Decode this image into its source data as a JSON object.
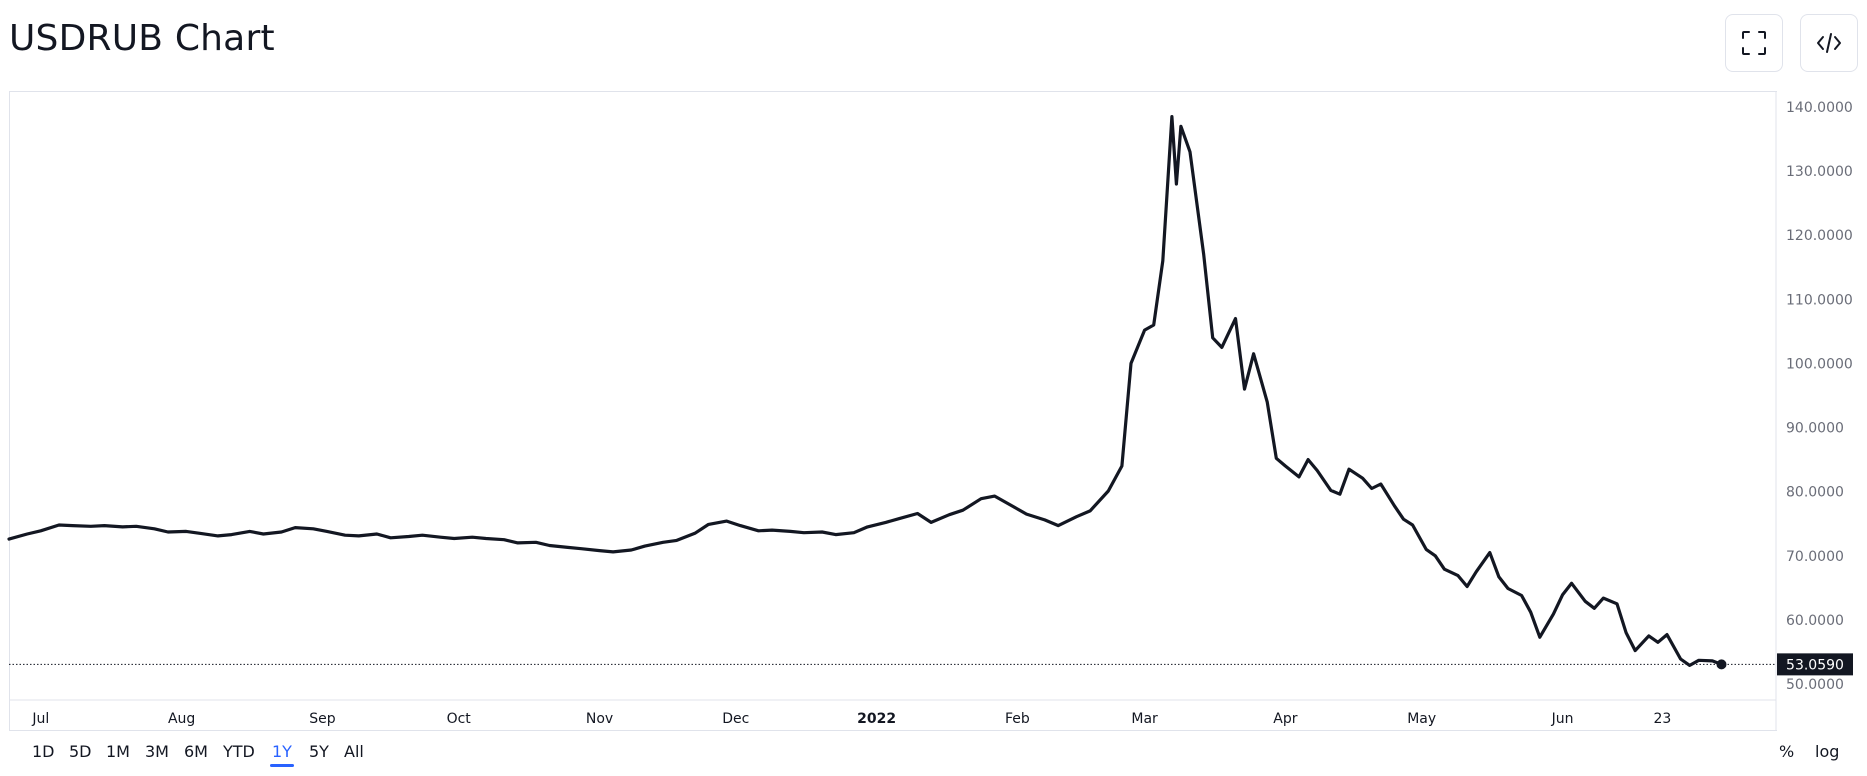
{
  "header": {
    "title": "USDRUB Chart",
    "buttons": [
      {
        "name": "fullscreen",
        "icon": "fullscreen-icon"
      },
      {
        "name": "embed",
        "icon": "code-icon"
      }
    ]
  },
  "chart_data": {
    "type": "line",
    "series": [
      {
        "color": "#131722",
        "last_value": 53.059,
        "last_value_label": "53.0590",
        "points": [
          [
            "2021-06-24",
            72.6
          ],
          [
            "2021-06-28",
            73.4
          ],
          [
            "2021-07-01",
            73.9
          ],
          [
            "2021-07-05",
            74.8
          ],
          [
            "2021-07-08",
            74.7
          ],
          [
            "2021-07-12",
            74.6
          ],
          [
            "2021-07-15",
            74.7
          ],
          [
            "2021-07-19",
            74.5
          ],
          [
            "2021-07-22",
            74.6
          ],
          [
            "2021-07-26",
            74.2
          ],
          [
            "2021-07-29",
            73.7
          ],
          [
            "2021-08-02",
            73.8
          ],
          [
            "2021-08-05",
            73.5
          ],
          [
            "2021-08-09",
            73.1
          ],
          [
            "2021-08-12",
            73.3
          ],
          [
            "2021-08-16",
            73.8
          ],
          [
            "2021-08-19",
            73.4
          ],
          [
            "2021-08-23",
            73.7
          ],
          [
            "2021-08-26",
            74.4
          ],
          [
            "2021-08-30",
            74.2
          ],
          [
            "2021-09-02",
            73.8
          ],
          [
            "2021-09-06",
            73.2
          ],
          [
            "2021-09-09",
            73.1
          ],
          [
            "2021-09-13",
            73.4
          ],
          [
            "2021-09-16",
            72.8
          ],
          [
            "2021-09-20",
            73.0
          ],
          [
            "2021-09-23",
            73.2
          ],
          [
            "2021-09-27",
            72.9
          ],
          [
            "2021-09-30",
            72.7
          ],
          [
            "2021-10-04",
            72.9
          ],
          [
            "2021-10-07",
            72.7
          ],
          [
            "2021-10-11",
            72.5
          ],
          [
            "2021-10-14",
            72.0
          ],
          [
            "2021-10-18",
            72.1
          ],
          [
            "2021-10-21",
            71.6
          ],
          [
            "2021-10-25",
            71.3
          ],
          [
            "2021-10-28",
            71.1
          ],
          [
            "2021-11-01",
            70.8
          ],
          [
            "2021-11-04",
            70.6
          ],
          [
            "2021-11-08",
            70.9
          ],
          [
            "2021-11-11",
            71.5
          ],
          [
            "2021-11-15",
            72.1
          ],
          [
            "2021-11-18",
            72.4
          ],
          [
            "2021-11-22",
            73.5
          ],
          [
            "2021-11-25",
            74.9
          ],
          [
            "2021-11-29",
            75.4
          ],
          [
            "2021-12-02",
            74.7
          ],
          [
            "2021-12-06",
            73.9
          ],
          [
            "2021-12-09",
            74.0
          ],
          [
            "2021-12-13",
            73.8
          ],
          [
            "2021-12-16",
            73.6
          ],
          [
            "2021-12-20",
            73.7
          ],
          [
            "2021-12-23",
            73.3
          ],
          [
            "2021-12-27",
            73.6
          ],
          [
            "2021-12-30",
            74.5
          ],
          [
            "2022-01-03",
            75.2
          ],
          [
            "2022-01-06",
            75.8
          ],
          [
            "2022-01-10",
            76.6
          ],
          [
            "2022-01-13",
            75.2
          ],
          [
            "2022-01-17",
            76.4
          ],
          [
            "2022-01-20",
            77.1
          ],
          [
            "2022-01-24",
            78.9
          ],
          [
            "2022-01-27",
            79.3
          ],
          [
            "2022-01-31",
            77.7
          ],
          [
            "2022-02-03",
            76.5
          ],
          [
            "2022-02-07",
            75.6
          ],
          [
            "2022-02-10",
            74.7
          ],
          [
            "2022-02-14",
            76.1
          ],
          [
            "2022-02-17",
            77.0
          ],
          [
            "2022-02-21",
            80.1
          ],
          [
            "2022-02-24",
            84.0
          ],
          [
            "2022-02-26",
            100.0
          ],
          [
            "2022-03-01",
            105.2
          ],
          [
            "2022-03-03",
            106.0
          ],
          [
            "2022-03-05",
            116.0
          ],
          [
            "2022-03-07",
            138.5
          ],
          [
            "2022-03-08",
            128.0
          ],
          [
            "2022-03-09",
            137.0
          ],
          [
            "2022-03-11",
            133.0
          ],
          [
            "2022-03-14",
            117.0
          ],
          [
            "2022-03-16",
            104.0
          ],
          [
            "2022-03-18",
            102.5
          ],
          [
            "2022-03-21",
            107.0
          ],
          [
            "2022-03-23",
            96.0
          ],
          [
            "2022-03-25",
            101.5
          ],
          [
            "2022-03-28",
            94.0
          ],
          [
            "2022-03-30",
            85.2
          ],
          [
            "2022-04-01",
            84.0
          ],
          [
            "2022-04-04",
            82.3
          ],
          [
            "2022-04-06",
            85.0
          ],
          [
            "2022-04-08",
            83.3
          ],
          [
            "2022-04-11",
            80.2
          ],
          [
            "2022-04-13",
            79.6
          ],
          [
            "2022-04-15",
            83.5
          ],
          [
            "2022-04-18",
            82.1
          ],
          [
            "2022-04-20",
            80.5
          ],
          [
            "2022-04-22",
            81.2
          ],
          [
            "2022-04-25",
            77.8
          ],
          [
            "2022-04-27",
            75.7
          ],
          [
            "2022-04-29",
            74.8
          ],
          [
            "2022-05-02",
            71.0
          ],
          [
            "2022-05-04",
            70.0
          ],
          [
            "2022-05-06",
            67.9
          ],
          [
            "2022-05-09",
            66.9
          ],
          [
            "2022-05-11",
            65.2
          ],
          [
            "2022-05-13",
            67.5
          ],
          [
            "2022-05-16",
            70.5
          ],
          [
            "2022-05-18",
            66.7
          ],
          [
            "2022-05-20",
            64.9
          ],
          [
            "2022-05-23",
            63.8
          ],
          [
            "2022-05-25",
            61.2
          ],
          [
            "2022-05-27",
            57.3
          ],
          [
            "2022-05-30",
            60.9
          ],
          [
            "2022-06-01",
            63.9
          ],
          [
            "2022-06-03",
            65.7
          ],
          [
            "2022-06-06",
            62.9
          ],
          [
            "2022-06-08",
            61.8
          ],
          [
            "2022-06-10",
            63.4
          ],
          [
            "2022-06-13",
            62.5
          ],
          [
            "2022-06-15",
            58.0
          ],
          [
            "2022-06-17",
            55.2
          ],
          [
            "2022-06-20",
            57.5
          ],
          [
            "2022-06-22",
            56.5
          ],
          [
            "2022-06-24",
            57.7
          ],
          [
            "2022-06-27",
            53.9
          ],
          [
            "2022-06-29",
            52.9
          ],
          [
            "2022-07-01",
            53.7
          ],
          [
            "2022-07-04",
            53.6
          ],
          [
            "2022-07-06",
            53.06
          ]
        ]
      }
    ],
    "x_ticks": [
      {
        "label": "Jul",
        "date": "2021-07-01"
      },
      {
        "label": "Aug",
        "date": "2021-08-01"
      },
      {
        "label": "Sep",
        "date": "2021-09-01"
      },
      {
        "label": "Oct",
        "date": "2021-10-01"
      },
      {
        "label": "Nov",
        "date": "2021-11-01"
      },
      {
        "label": "Dec",
        "date": "2021-12-01"
      },
      {
        "label": "2022",
        "date": "2022-01-01",
        "bold": true
      },
      {
        "label": "Feb",
        "date": "2022-02-01"
      },
      {
        "label": "Mar",
        "date": "2022-03-01"
      },
      {
        "label": "Apr",
        "date": "2022-04-01"
      },
      {
        "label": "May",
        "date": "2022-05-01"
      },
      {
        "label": "Jun",
        "date": "2022-06-01"
      },
      {
        "label": "23",
        "date": "2022-06-23"
      }
    ],
    "y_ticks": [
      "140.0000",
      "130.0000",
      "120.0000",
      "110.0000",
      "100.0000",
      "90.0000",
      "80.0000",
      "70.0000",
      "60.0000",
      "50.0000"
    ],
    "ylim": [
      47.5,
      142.5
    ],
    "xlim": [
      "2021-06-24",
      "2022-07-18"
    ],
    "grid": false,
    "legend": "none"
  },
  "toolbar": {
    "ranges": [
      {
        "label": "1D",
        "active": false
      },
      {
        "label": "5D",
        "active": false
      },
      {
        "label": "1M",
        "active": false
      },
      {
        "label": "3M",
        "active": false
      },
      {
        "label": "6M",
        "active": false
      },
      {
        "label": "YTD",
        "active": false
      },
      {
        "label": "1Y",
        "active": true
      },
      {
        "label": "5Y",
        "active": false
      },
      {
        "label": "All",
        "active": false
      }
    ],
    "percent_label": "%",
    "log_label": "log"
  }
}
